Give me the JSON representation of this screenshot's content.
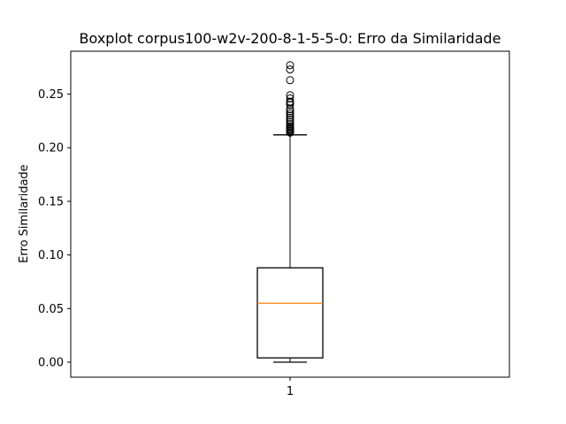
{
  "chart_data": {
    "type": "boxplot",
    "title": "Boxplot corpus100-w2v-200-8-1-5-5-0: Erro da Similaridade",
    "xlabel": "",
    "ylabel": "Erro Similaridade",
    "categories": [
      "1"
    ],
    "ylim": [
      -0.014,
      0.29
    ],
    "yticks": [
      0.0,
      0.05,
      0.1,
      0.15,
      0.2,
      0.25
    ],
    "ytick_labels": [
      "0.00",
      "0.05",
      "0.10",
      "0.15",
      "0.20",
      "0.25"
    ],
    "grid": false,
    "boxes": [
      {
        "category": "1",
        "whisker_low": 0.0,
        "q1": 0.004,
        "median": 0.055,
        "q3": 0.088,
        "whisker_high": 0.212,
        "outliers": [
          0.214,
          0.215,
          0.216,
          0.217,
          0.218,
          0.219,
          0.22,
          0.222,
          0.224,
          0.226,
          0.228,
          0.23,
          0.232,
          0.234,
          0.236,
          0.24,
          0.242,
          0.243,
          0.246,
          0.249,
          0.263,
          0.273,
          0.277
        ]
      }
    ],
    "colors": {
      "box": "#000000",
      "median": "#ff7f0e",
      "outlier": "#000000"
    }
  }
}
